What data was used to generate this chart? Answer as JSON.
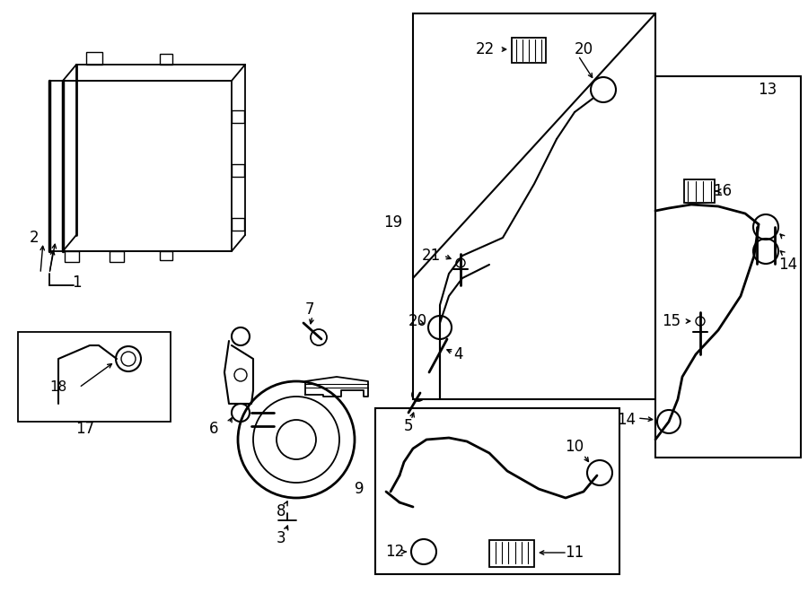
{
  "bg": "#ffffff",
  "lc": "#000000",
  "fig_w": 9.0,
  "fig_h": 6.61,
  "dpi": 100
}
